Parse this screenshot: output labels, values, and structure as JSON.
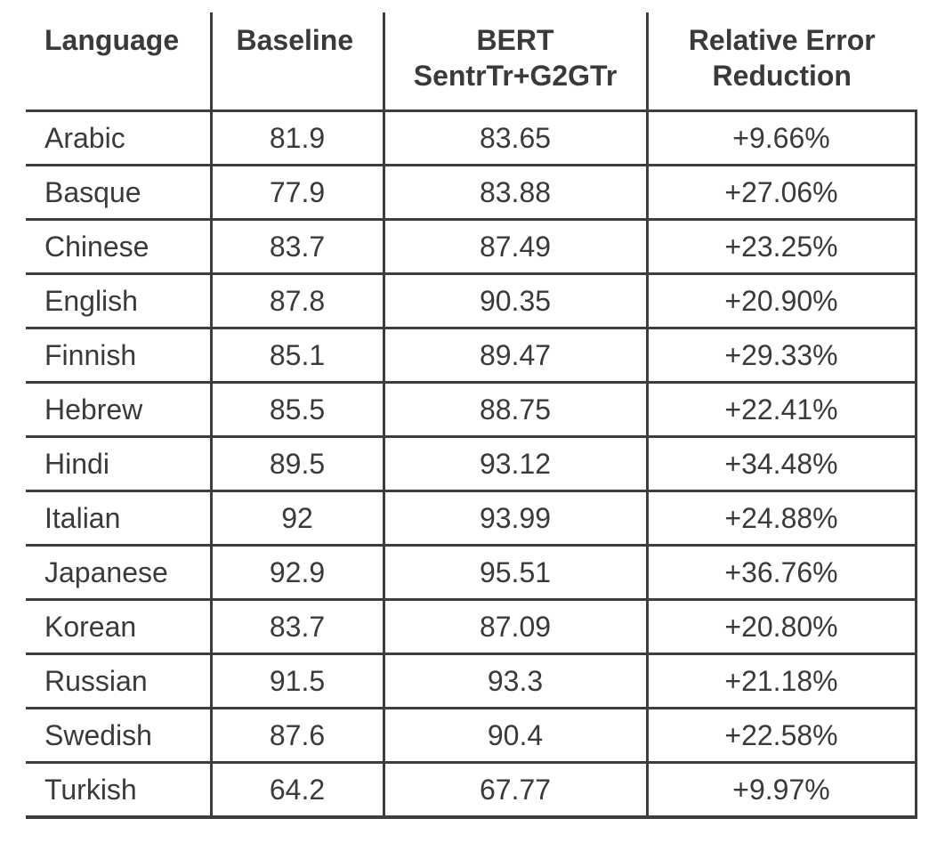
{
  "table": {
    "headers": {
      "language": "Language",
      "baseline": "Baseline",
      "bert_line1": "BERT",
      "bert_line2": "SentrTr+G2GTr",
      "rer_line1": "Relative Error",
      "rer_line2": "Reduction"
    },
    "rows": [
      {
        "language": "Arabic",
        "baseline": "81.9",
        "bert": "83.65",
        "rer": "+9.66%"
      },
      {
        "language": "Basque",
        "baseline": "77.9",
        "bert": "83.88",
        "rer": "+27.06%"
      },
      {
        "language": "Chinese",
        "baseline": "83.7",
        "bert": "87.49",
        "rer": "+23.25%"
      },
      {
        "language": "English",
        "baseline": "87.8",
        "bert": "90.35",
        "rer": "+20.90%"
      },
      {
        "language": "Finnish",
        "baseline": "85.1",
        "bert": "89.47",
        "rer": "+29.33%"
      },
      {
        "language": "Hebrew",
        "baseline": "85.5",
        "bert": "88.75",
        "rer": "+22.41%"
      },
      {
        "language": "Hindi",
        "baseline": "89.5",
        "bert": "93.12",
        "rer": "+34.48%"
      },
      {
        "language": "Italian",
        "baseline": "92",
        "bert": "93.99",
        "rer": "+24.88%"
      },
      {
        "language": "Japanese",
        "baseline": "92.9",
        "bert": "95.51",
        "rer": "+36.76%"
      },
      {
        "language": "Korean",
        "baseline": "83.7",
        "bert": "87.09",
        "rer": "+20.80%"
      },
      {
        "language": "Russian",
        "baseline": "91.5",
        "bert": "93.3",
        "rer": "+21.18%"
      },
      {
        "language": "Swedish",
        "baseline": "87.6",
        "bert": "90.4",
        "rer": "+22.58%"
      },
      {
        "language": "Turkish",
        "baseline": "64.2",
        "bert": "67.77",
        "rer": "+9.97%"
      }
    ]
  }
}
